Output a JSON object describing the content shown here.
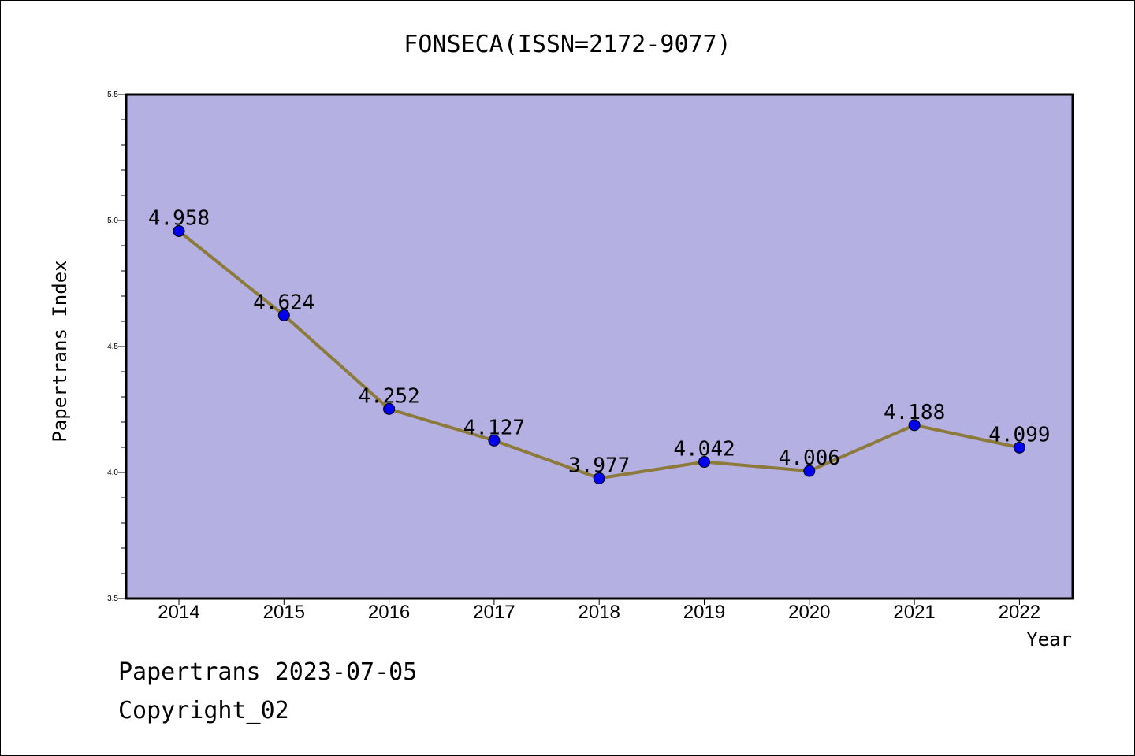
{
  "chart_data": {
    "type": "line",
    "title": "FONSECA(ISSN=2172-9077)",
    "xlabel": "Year",
    "ylabel": "Papertrans Index",
    "x": [
      "2014",
      "2015",
      "2016",
      "2017",
      "2018",
      "2019",
      "2020",
      "2021",
      "2022"
    ],
    "series": [
      {
        "values": [
          4.958,
          4.624,
          4.252,
          4.127,
          3.977,
          4.042,
          4.006,
          4.188,
          4.099
        ],
        "labels": [
          "4.958",
          "4.624",
          "4.252",
          "4.127",
          "3.977",
          "4.042",
          "4.006",
          "4.188",
          "4.099"
        ],
        "line_color": "#8b7a3a",
        "marker_color": "#0000ee"
      }
    ],
    "ylim": [
      3.5,
      5.5
    ],
    "yticks": [
      "3.5",
      "4.0",
      "4.5",
      "5.0",
      "5.5"
    ],
    "grid": false,
    "plot_background": "#b5b0e2"
  },
  "footer": {
    "line1": "Papertrans 2023-07-05",
    "line2": "Copyright_02"
  }
}
